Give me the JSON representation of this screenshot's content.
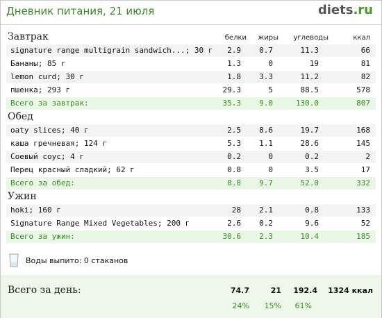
{
  "header": {
    "title": "Дневник питания, 21 июля",
    "logo_main": "diets",
    "logo_suffix": ".ru"
  },
  "columns": {
    "protein": "белки",
    "fat": "жиры",
    "carbs": "углеводы",
    "kcal": "ккал"
  },
  "meals": [
    {
      "name": "Завтрак",
      "items": [
        {
          "name": "signature range multigrain sandwich...; 30 г",
          "protein": "2.9",
          "fat": "0.7",
          "carbs": "11.3",
          "kcal": "66"
        },
        {
          "name": "Бананы; 85 г",
          "protein": "1.3",
          "fat": "0",
          "carbs": "19",
          "kcal": "81"
        },
        {
          "name": "lemon curd; 30 г",
          "protein": "1.8",
          "fat": "3.3",
          "carbs": "11.2",
          "kcal": "82"
        },
        {
          "name": "пшенка; 293 г",
          "protein": "29.3",
          "fat": "5",
          "carbs": "88.5",
          "kcal": "578"
        }
      ],
      "total": {
        "label": "Всего за завтрак:",
        "protein": "35.3",
        "fat": "9.0",
        "carbs": "130.0",
        "kcal": "807"
      }
    },
    {
      "name": "Обед",
      "items": [
        {
          "name": "oaty slices; 40 г",
          "protein": "2.5",
          "fat": "8.6",
          "carbs": "19.7",
          "kcal": "168"
        },
        {
          "name": "каша гречневая; 124 г",
          "protein": "5.3",
          "fat": "1.1",
          "carbs": "28.6",
          "kcal": "145"
        },
        {
          "name": "Соевый соус; 4 г",
          "protein": "0.2",
          "fat": "0",
          "carbs": "0.2",
          "kcal": "2"
        },
        {
          "name": "Перец красный сладкий; 62 г",
          "protein": "0.8",
          "fat": "0",
          "carbs": "3.5",
          "kcal": "17"
        }
      ],
      "total": {
        "label": "Всего за обед:",
        "protein": "8.8",
        "fat": "9.7",
        "carbs": "52.0",
        "kcal": "332"
      }
    },
    {
      "name": "Ужин",
      "items": [
        {
          "name": "hoki; 160 г",
          "protein": "28",
          "fat": "2.1",
          "carbs": "0.8",
          "kcal": "133"
        },
        {
          "name": "Signature Range Mixed Vegetables; 200 г",
          "protein": "2.6",
          "fat": "0.2",
          "carbs": "9.6",
          "kcal": "52"
        }
      ],
      "total": {
        "label": "Всего за ужин:",
        "protein": "30.6",
        "fat": "2.3",
        "carbs": "10.4",
        "kcal": "185"
      }
    }
  ],
  "water": {
    "text": "Воды выпито: 0 стаканов",
    "icon": "glass-icon"
  },
  "day_total": {
    "label": "Всего за день:",
    "protein": "74.7",
    "fat": "21",
    "carbs": "192.4",
    "kcal": "1324 ккал",
    "protein_pct": "24%",
    "fat_pct": "15%",
    "carbs_pct": "61%"
  },
  "colors": {
    "green": "#3a8a25",
    "summary_bg": "#eaf6e6"
  }
}
